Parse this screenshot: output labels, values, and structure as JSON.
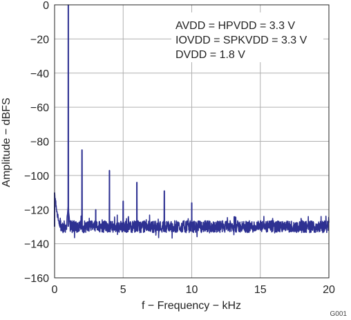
{
  "chart_data": {
    "type": "line",
    "xlabel": "f − Frequency − kHz",
    "ylabel": "Amplitude − dBFS",
    "xlim": [
      0,
      20
    ],
    "ylim": [
      -160,
      0
    ],
    "x_ticks": [
      0,
      5,
      10,
      15,
      20
    ],
    "y_ticks": [
      0,
      -20,
      -40,
      -60,
      -80,
      -100,
      -120,
      -140,
      -160
    ],
    "x_tick_labels": [
      "0",
      "5",
      "10",
      "15",
      "20"
    ],
    "y_tick_labels": [
      "0",
      "−20",
      "−40",
      "−60",
      "−80",
      "−100",
      "−120",
      "−140",
      "−160"
    ],
    "grid": true,
    "line_color": "#2e3192",
    "noise_floor_dbfs": -130,
    "series": [
      {
        "peaks": [
          {
            "x": 0.0,
            "y": -110
          },
          {
            "x": 1.0,
            "y": 0
          },
          {
            "x": 2.0,
            "y": -85
          },
          {
            "x": 3.0,
            "y": -120
          },
          {
            "x": 4.0,
            "y": -97
          },
          {
            "x": 5.0,
            "y": -115
          },
          {
            "x": 6.0,
            "y": -104
          },
          {
            "x": 8.0,
            "y": -109
          },
          {
            "x": 10.0,
            "y": -116
          }
        ]
      }
    ],
    "annotations": [
      "AVDD = HPVDD = 3.3 V",
      "IOVDD = SPKVDD = 3.3 V",
      "DVDD = 1.8 V"
    ]
  },
  "figure_id": "G001"
}
